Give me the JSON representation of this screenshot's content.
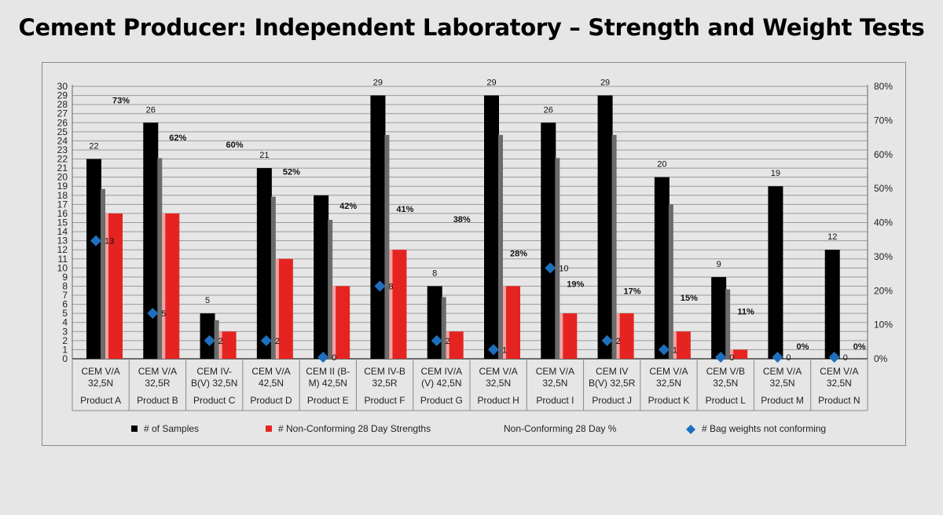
{
  "title": "Cement Producer: Independent Laboratory – Strength and Weight Tests",
  "chart_data": {
    "type": "bar",
    "categories": [
      {
        "cement": [
          "CEM V/A",
          "32,5N"
        ],
        "product": "Product A"
      },
      {
        "cement": [
          "CEM V/A",
          "32,5R"
        ],
        "product": "Product B"
      },
      {
        "cement": [
          "CEM IV-",
          "B(V) 32,5N"
        ],
        "product": "Product C"
      },
      {
        "cement": [
          "CEM V/A",
          "42,5N"
        ],
        "product": "Product D"
      },
      {
        "cement": [
          "CEM II (B-",
          "M) 42,5N"
        ],
        "product": "Product E"
      },
      {
        "cement": [
          "CEM IV-B",
          "32,5R"
        ],
        "product": "Product F"
      },
      {
        "cement": [
          "CEM IV/A",
          "(V) 42,5N"
        ],
        "product": "Product G"
      },
      {
        "cement": [
          "CEM V/A",
          "32,5N"
        ],
        "product": "Product H"
      },
      {
        "cement": [
          "CEM V/A",
          "32,5N"
        ],
        "product": "Product I"
      },
      {
        "cement": [
          "CEM IV",
          "B(V) 32,5R"
        ],
        "product": "Product J"
      },
      {
        "cement": [
          "CEM V/A",
          "32,5N"
        ],
        "product": "Product K"
      },
      {
        "cement": [
          "CEM V/B",
          "32,5N"
        ],
        "product": "Product L"
      },
      {
        "cement": [
          "CEM V/A",
          "32,5N"
        ],
        "product": "Product M"
      },
      {
        "cement": [
          "CEM V/A",
          "32,5N"
        ],
        "product": "Product N"
      }
    ],
    "series": [
      {
        "name": "# of Samples",
        "axis": "left",
        "color": "#000000",
        "values": [
          22,
          26,
          5,
          21,
          18,
          29,
          8,
          29,
          26,
          29,
          20,
          9,
          19,
          12
        ],
        "labels": [
          "22",
          "26",
          "5",
          "21",
          "",
          "29",
          "8",
          "29",
          "26",
          "29",
          "20",
          "9",
          "19",
          "12"
        ]
      },
      {
        "name": "# Non-Conforming 28 Day Strengths",
        "axis": "left",
        "color": "#e52421",
        "values": [
          16,
          16,
          3,
          11,
          8,
          12,
          3,
          8,
          5,
          5,
          3,
          1,
          0,
          0
        ]
      },
      {
        "name": "Non-Conforming 28 Day %",
        "axis": "right",
        "values": [
          73,
          62,
          60,
          52,
          42,
          41,
          38,
          28,
          19,
          17,
          15,
          11,
          0,
          0
        ],
        "labels": [
          "73%",
          "62%",
          "60%",
          "52%",
          "42%",
          "41%",
          "38%",
          "28%",
          "19%",
          "17%",
          "15%",
          "11%",
          "0%",
          "0%"
        ]
      },
      {
        "name": "# Bag weights not conforming",
        "axis": "left",
        "color": "#1f6fbf",
        "values": [
          13,
          5,
          2,
          2,
          0,
          8,
          2,
          1,
          10,
          2,
          1,
          0,
          0,
          0
        ],
        "labels": [
          "13",
          "5",
          "2",
          "2",
          "0",
          "8",
          "2",
          "1",
          "10",
          "2",
          "1",
          "0",
          "0",
          "0"
        ]
      }
    ],
    "yleft": {
      "min": 0,
      "max": 30,
      "ticks": [
        "0",
        "1",
        "2",
        "3",
        "4",
        "5",
        "6",
        "7",
        "8",
        "9",
        "10",
        "11",
        "12",
        "13",
        "14",
        "15",
        "16",
        "17",
        "18",
        "19",
        "20",
        "21",
        "22",
        "23",
        "24",
        "25",
        "26",
        "27",
        "28",
        "29",
        "30"
      ]
    },
    "yright": {
      "min": 0,
      "max": 80,
      "ticks": [
        "0%",
        "10%",
        "20%",
        "30%",
        "40%",
        "50%",
        "60%",
        "70%",
        "80%"
      ]
    },
    "grid": true,
    "legend_position": "bottom"
  }
}
